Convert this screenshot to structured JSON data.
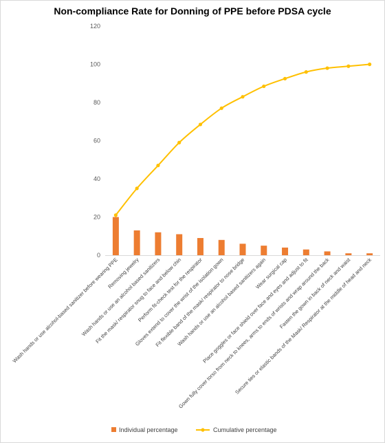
{
  "chart_data": {
    "type": "bar+line",
    "title": "Non-compliance Rate for Donning of PPE before PDSA cycle",
    "categories": [
      "Wash hands or use alcohol-based sanitizer before wearing PPE",
      "Removing jewelry",
      "Wash hands or use an alcohol based sanitizers",
      "Fit the mask/ respirator snug to face and below chin",
      "Perform fit-check test for the respirator",
      "Gloves extend to cover the wrist of the isolation gown",
      "Fit flexible band of the mask/ respirator to nose bridge",
      "Wash hands or use an alcohol based sanitizers again",
      "Wear surgical cap",
      "Place goggles or face shield over face and eyes and adjust to fit",
      "Gown fully cover torso from neck to knees, arms to ends of wrists and wrap around the back",
      "Fasten the gown in back of neck and waist",
      "Secure ties or elastic bands of the Mask/ Respirator at the middle of head and neck"
    ],
    "series": [
      {
        "name": "Individual percentage",
        "type": "bar",
        "color": "#ed7d31",
        "values": [
          20,
          13,
          12,
          11,
          9,
          8,
          6,
          5,
          4,
          3,
          2,
          1,
          1
        ]
      },
      {
        "name": "Cumulative percentage",
        "type": "line",
        "color": "#ffc000",
        "values": [
          21,
          35,
          47,
          59,
          68.5,
          77,
          83,
          88.5,
          92.5,
          96,
          98,
          99,
          100
        ]
      }
    ],
    "ylim": [
      0,
      120
    ],
    "yticks": [
      0,
      20,
      40,
      60,
      80,
      100,
      120
    ],
    "grid": false,
    "legend_position": "bottom"
  }
}
